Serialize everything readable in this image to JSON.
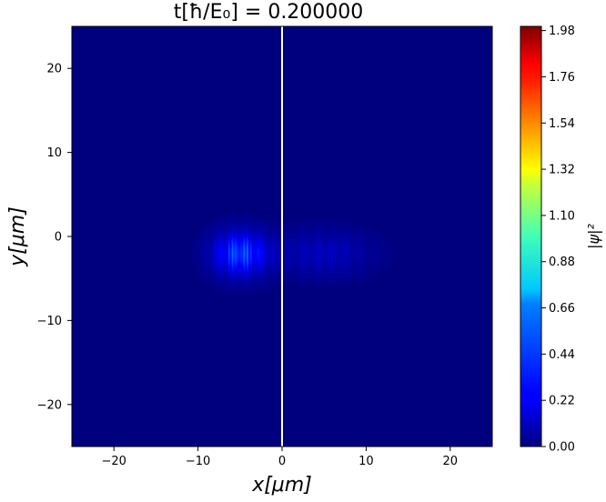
{
  "chart_data": {
    "type": "heatmap",
    "title": "t[ħ/E₀] =  0.200000",
    "xlabel": "x[μm]",
    "ylabel": "y[μm]",
    "xlim": [
      -25,
      25
    ],
    "ylim": [
      -25,
      25
    ],
    "x_ticks": [
      -20,
      -10,
      0,
      10,
      20
    ],
    "y_ticks": [
      -20,
      -10,
      0,
      10,
      20
    ],
    "x_tick_labels": [
      "−20",
      "−10",
      "0",
      "10",
      "20"
    ],
    "y_tick_labels": [
      "−20",
      "−10",
      "0",
      "10",
      "20"
    ],
    "colormap": "jet",
    "colorbar": {
      "label": "|ψ|²",
      "range": [
        0.0,
        2.0
      ],
      "ticks": [
        0.0,
        0.22,
        0.44,
        0.66,
        0.88,
        1.1,
        1.32,
        1.54,
        1.76,
        1.98
      ],
      "tick_labels": [
        "0.00",
        "0.22",
        "0.44",
        "0.66",
        "0.88",
        "1.10",
        "1.32",
        "1.54",
        "1.76",
        "1.98"
      ]
    },
    "background_value": 0.0,
    "vertical_line": {
      "x": 0,
      "color": "#ffffff"
    },
    "field": {
      "description_of_shape": "elongated striped blob",
      "center_y": -2,
      "y_halfwidth": 2.6,
      "components": [
        {
          "center_x": -5,
          "x_width": 3.2,
          "peak": 0.5
        },
        {
          "center_x": 5,
          "x_width": 5.5,
          "peak": 0.16
        }
      ],
      "x_range": [
        -16,
        16
      ],
      "stripe_period": 0.2
    },
    "grid": false
  }
}
